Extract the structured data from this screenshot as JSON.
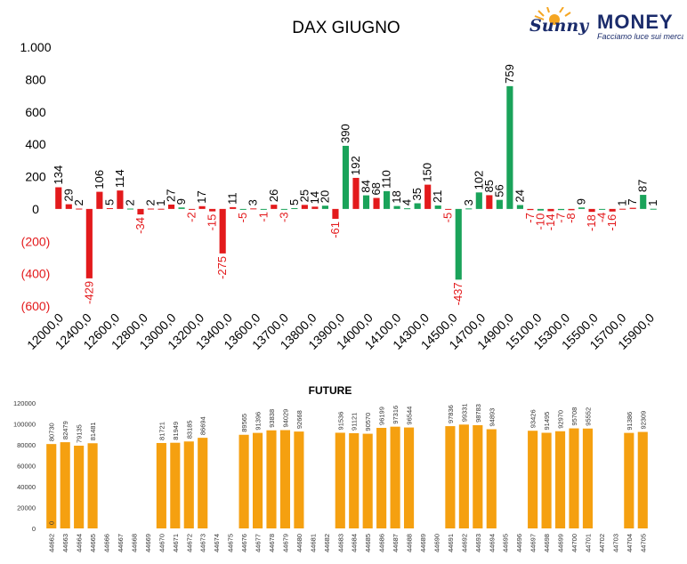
{
  "logo": {
    "brand_script": "Sunny",
    "brand_word": "MONEY",
    "tagline": "Facciamo luce sui mercati",
    "accent_color": "#f5a623",
    "brand_color": "#1a2b6b"
  },
  "colors": {
    "red": "#e31a1c",
    "green": "#1aa35a",
    "orange": "#f5a010",
    "negative_text": "#e31a1c"
  },
  "chart_data": [
    {
      "type": "bar",
      "title": "DAX GIUGNO",
      "ylim": [
        -600,
        1000
      ],
      "yticks": [
        {
          "value": 1000,
          "label": "1.000"
        },
        {
          "value": 800,
          "label": "800"
        },
        {
          "value": 600,
          "label": "600"
        },
        {
          "value": 400,
          "label": "400"
        },
        {
          "value": 200,
          "label": "200"
        },
        {
          "value": 0,
          "label": "0"
        },
        {
          "value": -200,
          "label": "(200)"
        },
        {
          "value": -400,
          "label": "(400)"
        },
        {
          "value": -600,
          "label": "(600)"
        }
      ],
      "xticks": [
        "12000,0",
        "12400,0",
        "12600,0",
        "12800,0",
        "13000,0",
        "13200,0",
        "13400,0",
        "13600,0",
        "13700,0",
        "13800,0",
        "13900,0",
        "14000,0",
        "14100,0",
        "14300,0",
        "14500,0",
        "14700,0",
        "14900,0",
        "15100,0",
        "15300,0",
        "15500,0",
        "15700,0",
        "15900,0"
      ],
      "grid": false,
      "legend": "none",
      "series": [
        {
          "color": "red",
          "values": [
            134,
            29,
            2,
            -429,
            106,
            5,
            114,
            2,
            -34,
            2,
            1,
            27,
            9,
            -2,
            17,
            -15,
            -275,
            11,
            -5,
            3,
            -1,
            26,
            -3,
            5,
            25,
            14,
            20,
            -61,
            390,
            192,
            84,
            68,
            110,
            18,
            4,
            35,
            150,
            21,
            -5,
            -437,
            3,
            102,
            85,
            56,
            759,
            24,
            -7,
            -10,
            -14,
            -7,
            -8,
            9,
            -18,
            -4,
            -16,
            1,
            7,
            87,
            1
          ]
        }
      ],
      "bar_colors": [
        "red",
        "red",
        "red",
        "red",
        "red",
        "red",
        "red",
        "green",
        "red",
        "red",
        "red",
        "red",
        "green",
        "red",
        "red",
        "red",
        "red",
        "red",
        "green",
        "red",
        "green",
        "red",
        "green",
        "green",
        "red",
        "red",
        "green",
        "red",
        "green",
        "red",
        "green",
        "red",
        "green",
        "green",
        "green",
        "green",
        "red",
        "green",
        "red",
        "green",
        "green",
        "green",
        "red",
        "green",
        "green",
        "green",
        "red",
        "green",
        "red",
        "green",
        "red",
        "green",
        "red",
        "green",
        "red",
        "red",
        "red",
        "green",
        "green"
      ],
      "data_labels": [
        "134",
        "29",
        "2",
        "-429",
        "106",
        "5",
        "114",
        "2",
        "-34",
        "2",
        "1",
        "27",
        "9",
        "-2",
        "17",
        "-15",
        "-275",
        "11",
        "-5",
        "3",
        "-1",
        "26",
        "-3",
        "5",
        "25",
        "14",
        "20",
        "-61",
        "390",
        "192",
        "84",
        "68",
        "110",
        "18",
        "4",
        "35",
        "150",
        "21",
        "-5",
        "-437",
        "3",
        "102",
        "85",
        "56",
        "759",
        "24",
        "-7",
        "-10",
        "-14",
        "-7",
        "-8",
        "9",
        "-18",
        "-4",
        "-16",
        "1",
        "7",
        "87",
        "1"
      ]
    },
    {
      "type": "bar",
      "title": "FUTURE",
      "ylim": [
        0,
        120000
      ],
      "yticks": [
        {
          "value": 120000,
          "label": "120000"
        },
        {
          "value": 100000,
          "label": "100000"
        },
        {
          "value": 80000,
          "label": "80000"
        },
        {
          "value": 60000,
          "label": "60000"
        },
        {
          "value": 40000,
          "label": "40000"
        },
        {
          "value": 20000,
          "label": "20000"
        },
        {
          "value": 0,
          "label": "0"
        }
      ],
      "grid": false,
      "legend": "none",
      "categories": [
        "44662",
        "44663",
        "44664",
        "44665",
        "44666",
        "44667",
        "44668",
        "44669",
        "44670",
        "44671",
        "44672",
        "44673",
        "44674",
        "44675",
        "44676",
        "44677",
        "44678",
        "44679",
        "44680",
        "44681",
        "44682",
        "44683",
        "44684",
        "44685",
        "44686",
        "44687",
        "44688",
        "44689",
        "44690",
        "44691",
        "44692",
        "44693",
        "44694",
        "44695",
        "44696",
        "44697",
        "44698",
        "44699",
        "44700",
        "44701",
        "44702",
        "44703",
        "44704",
        "44705"
      ],
      "values": [
        80730,
        82479,
        79135,
        81481,
        null,
        null,
        null,
        null,
        81721,
        81949,
        83185,
        86694,
        null,
        null,
        89565,
        91396,
        93838,
        94029,
        92668,
        null,
        null,
        91536,
        91121,
        90570,
        96199,
        97316,
        96544,
        null,
        null,
        97836,
        99331,
        98783,
        94893,
        null,
        null,
        93426,
        91495,
        92970,
        95708,
        95552,
        null,
        null,
        91386,
        92309
      ],
      "data_labels": [
        "80730",
        "82479",
        "79135",
        "81481",
        "",
        "",
        "",
        "",
        "81721",
        "81949",
        "83185",
        "86694",
        "",
        "",
        "89565",
        "91396",
        "93838",
        "94029",
        "92668",
        "",
        "",
        "91536",
        "91121",
        "90570",
        "96199",
        "97316",
        "96544",
        "",
        "",
        "97836",
        "99331",
        "98783",
        "94893",
        "",
        "",
        "93426",
        "91495",
        "92970",
        "95708",
        "95552",
        "",
        "",
        "91386",
        "92309"
      ],
      "inner_label": "0"
    }
  ]
}
